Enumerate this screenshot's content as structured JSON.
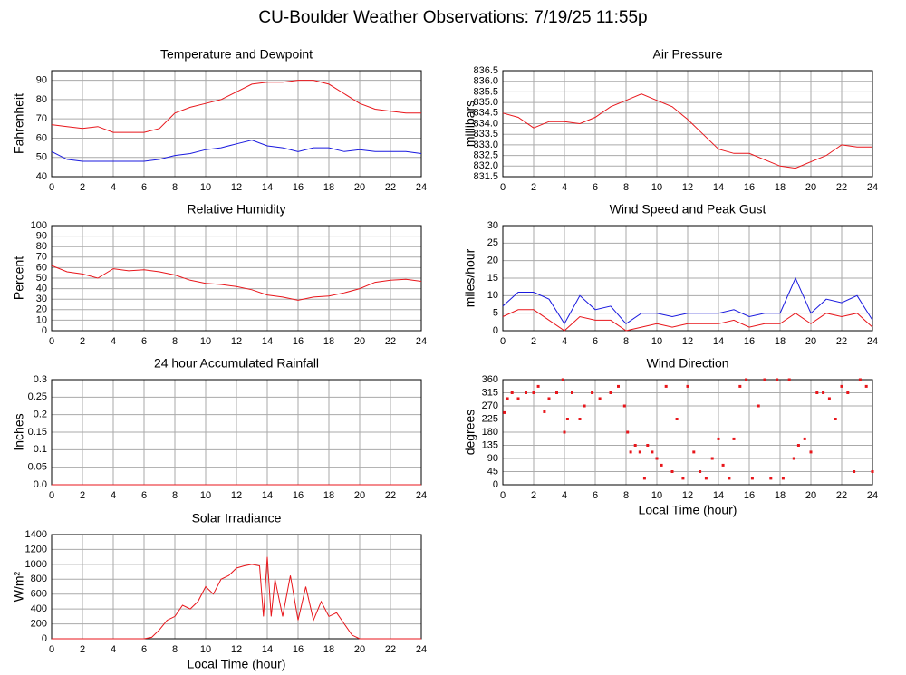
{
  "title": "CU-Boulder Weather Observations: 7/19/25 11:55p",
  "chart_data": [
    {
      "type": "line",
      "title": "Temperature and Dewpoint",
      "ylabel": "Fahrenheit",
      "x": [
        0,
        1,
        2,
        3,
        4,
        5,
        6,
        7,
        8,
        9,
        10,
        11,
        12,
        13,
        14,
        15,
        16,
        17,
        18,
        19,
        20,
        21,
        22,
        23,
        24
      ],
      "series": [
        {
          "color": "#e8161b",
          "values": [
            67,
            66,
            65,
            66,
            63,
            63,
            63,
            65,
            73,
            76,
            78,
            80,
            84,
            88,
            89,
            89,
            90,
            90,
            88,
            83,
            78,
            75,
            74,
            73,
            73
          ]
        },
        {
          "color": "#1a1adf",
          "values": [
            53,
            49,
            48,
            48,
            48,
            48,
            48,
            49,
            51,
            52,
            54,
            55,
            57,
            59,
            56,
            55,
            53,
            55,
            55,
            53,
            54,
            53,
            53,
            53,
            52
          ]
        }
      ],
      "xlim": [
        0,
        24
      ],
      "xticks": [
        0,
        2,
        4,
        6,
        8,
        10,
        12,
        14,
        16,
        18,
        20,
        22,
        24
      ],
      "ylim": [
        40,
        95
      ],
      "yticks": [
        40,
        50,
        60,
        70,
        80,
        90
      ],
      "grid": true
    },
    {
      "type": "line",
      "title": "Air Pressure",
      "ylabel": "millibars",
      "x": [
        0,
        1,
        2,
        3,
        4,
        5,
        6,
        7,
        8,
        9,
        10,
        11,
        12,
        13,
        14,
        15,
        16,
        17,
        18,
        19,
        20,
        21,
        22,
        23,
        24
      ],
      "series": [
        {
          "color": "#e8161b",
          "values": [
            834.5,
            834.3,
            833.8,
            834.1,
            834.1,
            834.0,
            834.3,
            834.8,
            835.1,
            835.4,
            835.1,
            834.8,
            834.2,
            833.5,
            832.8,
            832.6,
            832.6,
            832.3,
            832.0,
            831.9,
            832.2,
            832.5,
            833.0,
            832.9,
            832.9
          ]
        }
      ],
      "xlim": [
        0,
        24
      ],
      "xticks": [
        0,
        2,
        4,
        6,
        8,
        10,
        12,
        14,
        16,
        18,
        20,
        22,
        24
      ],
      "ylim": [
        831.5,
        836.5
      ],
      "yticks": [
        831.5,
        {
          "value": 832,
          "label": "832.0"
        },
        832.5,
        {
          "value": 833,
          "label": "833.0"
        },
        833.5,
        {
          "value": 834,
          "label": "834.0"
        },
        834.5,
        {
          "value": 835,
          "label": "835.0"
        },
        835.5,
        {
          "value": 836,
          "label": "836.0"
        },
        836.5
      ],
      "grid": true
    },
    {
      "type": "line",
      "title": "Relative Humidity",
      "ylabel": "Percent",
      "x": [
        0,
        1,
        2,
        3,
        4,
        5,
        6,
        7,
        8,
        9,
        10,
        11,
        12,
        13,
        14,
        15,
        16,
        17,
        18,
        19,
        20,
        21,
        22,
        23,
        24
      ],
      "series": [
        {
          "color": "#e8161b",
          "values": [
            62,
            56,
            54,
            50,
            59,
            57,
            58,
            56,
            53,
            48,
            45,
            44,
            42,
            39,
            34,
            32,
            29,
            32,
            33,
            36,
            40,
            46,
            48,
            49,
            47
          ]
        }
      ],
      "xlim": [
        0,
        24
      ],
      "xticks": [
        0,
        2,
        4,
        6,
        8,
        10,
        12,
        14,
        16,
        18,
        20,
        22,
        24
      ],
      "ylim": [
        0,
        100
      ],
      "yticks": [
        0,
        10,
        20,
        30,
        40,
        50,
        60,
        70,
        80,
        90,
        100
      ],
      "grid": true
    },
    {
      "type": "line",
      "title": "Wind Speed and Peak Gust",
      "ylabel": "miles/hour",
      "x": [
        0,
        1,
        2,
        3,
        4,
        5,
        6,
        7,
        8,
        9,
        10,
        11,
        12,
        13,
        14,
        15,
        16,
        17,
        18,
        19,
        20,
        21,
        22,
        23,
        24
      ],
      "series": [
        {
          "color": "#1a1adf",
          "values": [
            7,
            11,
            11,
            9,
            2,
            10,
            6,
            7,
            2,
            5,
            5,
            4,
            5,
            5,
            5,
            6,
            4,
            5,
            5,
            15,
            5,
            9,
            8,
            10,
            3
          ]
        },
        {
          "color": "#e8161b",
          "values": [
            4,
            6,
            6,
            3,
            0,
            4,
            3,
            3,
            0,
            1,
            2,
            1,
            2,
            2,
            2,
            3,
            1,
            2,
            2,
            5,
            2,
            5,
            4,
            5,
            1
          ]
        }
      ],
      "xlim": [
        0,
        24
      ],
      "xticks": [
        0,
        2,
        4,
        6,
        8,
        10,
        12,
        14,
        16,
        18,
        20,
        22,
        24
      ],
      "ylim": [
        0,
        30
      ],
      "yticks": [
        0,
        5,
        10,
        15,
        20,
        25,
        30
      ],
      "grid": true
    },
    {
      "type": "line",
      "title": "24 hour Accumulated Rainfall",
      "ylabel": "Inches",
      "x": [
        0,
        24
      ],
      "color": "#e8161b",
      "values": [
        0,
        0
      ],
      "xlim": [
        0,
        24
      ],
      "xticks": [
        0,
        2,
        4,
        6,
        8,
        10,
        12,
        14,
        16,
        18,
        20,
        22,
        24
      ],
      "ylim": [
        0,
        0.3
      ],
      "yticks": [
        {
          "value": 0,
          "label": "0.0"
        },
        0.05,
        0.1,
        0.15,
        0.2,
        0.25,
        0.3
      ],
      "grid": true
    },
    {
      "type": "scatter",
      "title": "Wind Direction",
      "ylabel": "degrees",
      "xlabel": "Local Time (hour)",
      "x": [
        0.1,
        0.3,
        0.6,
        1,
        1.5,
        2,
        2.3,
        2.7,
        3,
        3.5,
        3.9,
        4,
        4.2,
        4.5,
        5,
        5.3,
        5.8,
        6.3,
        7,
        7.5,
        7.9,
        8.1,
        8.3,
        8.6,
        8.9,
        9.2,
        9.4,
        9.7,
        10,
        10.3,
        10.6,
        11,
        11.3,
        11.7,
        12,
        12.4,
        12.8,
        13.2,
        13.6,
        14,
        14.3,
        14.7,
        15,
        15.4,
        15.8,
        16.2,
        16.6,
        17,
        17.4,
        17.8,
        18.2,
        18.6,
        18.9,
        19.2,
        19.6,
        20,
        20.4,
        20.8,
        21.2,
        21.6,
        22,
        22.4,
        22.8,
        23.2,
        23.6,
        24
      ],
      "color": "#e8161b",
      "values": [
        247,
        295,
        315,
        295,
        315,
        315,
        337,
        250,
        295,
        315,
        360,
        180,
        225,
        315,
        225,
        270,
        315,
        295,
        315,
        337,
        270,
        180,
        112,
        135,
        112,
        22,
        135,
        112,
        90,
        67,
        337,
        45,
        225,
        22,
        337,
        112,
        45,
        22,
        90,
        157,
        67,
        22,
        157,
        337,
        360,
        22,
        270,
        360,
        22,
        360,
        22,
        360,
        90,
        135,
        157,
        112,
        315,
        315,
        295,
        225,
        337,
        315,
        45,
        360,
        337,
        45
      ],
      "xlim": [
        0,
        24
      ],
      "xticks": [
        0,
        2,
        4,
        6,
        8,
        10,
        12,
        14,
        16,
        18,
        20,
        22,
        24
      ],
      "ylim": [
        0,
        360
      ],
      "yticks": [
        0,
        45,
        90,
        135,
        180,
        225,
        270,
        315,
        360
      ],
      "grid": true
    },
    {
      "type": "line",
      "title": "Solar Irradiance",
      "ylabel": "W/m²",
      "xlabel": "Local Time (hour)",
      "x": [
        0,
        6,
        6.5,
        7,
        7.5,
        8,
        8.5,
        9,
        9.5,
        10,
        10.5,
        11,
        11.5,
        12,
        12.5,
        13,
        13.5,
        13.75,
        14,
        14.25,
        14.5,
        15,
        15.5,
        16,
        16.5,
        17,
        17.5,
        18,
        18.5,
        19,
        19.5,
        20,
        24
      ],
      "color": "#e8161b",
      "values": [
        0,
        0,
        20,
        120,
        250,
        300,
        450,
        400,
        500,
        700,
        600,
        800,
        850,
        950,
        980,
        1000,
        980,
        300,
        1100,
        300,
        800,
        300,
        850,
        250,
        700,
        250,
        500,
        300,
        350,
        200,
        50,
        0,
        0
      ],
      "xlim": [
        0,
        24
      ],
      "xticks": [
        0,
        2,
        4,
        6,
        8,
        10,
        12,
        14,
        16,
        18,
        20,
        22,
        24
      ],
      "ylim": [
        0,
        1400
      ],
      "yticks": [
        0,
        200,
        400,
        600,
        800,
        1000,
        1200,
        1400
      ],
      "grid": true
    }
  ]
}
